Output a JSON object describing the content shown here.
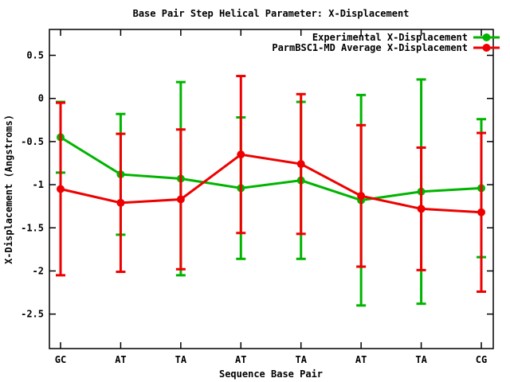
{
  "chart_data": {
    "type": "line",
    "title": "Base Pair Step Helical Parameter: X-Displacement",
    "xlabel": "Sequence Base Pair",
    "ylabel": "X-Displacement (Angstroms)",
    "categories": [
      "GC",
      "AT",
      "TA",
      "AT",
      "TA",
      "AT",
      "TA",
      "CG"
    ],
    "series": [
      {
        "name": "Experimental X-Displacement",
        "color": "#00b400",
        "marker": "filled-circle",
        "values": [
          -0.45,
          -0.88,
          -0.93,
          -1.04,
          -0.95,
          -1.18,
          -1.08,
          -1.04
        ],
        "errors": [
          0.41,
          0.7,
          1.12,
          0.82,
          0.91,
          1.22,
          1.3,
          0.8
        ]
      },
      {
        "name": "ParmBSC1-MD Average X-Displacement",
        "color": "#ee0000",
        "marker": "filled-circle",
        "values": [
          -1.05,
          -1.21,
          -1.17,
          -0.65,
          -0.76,
          -1.13,
          -1.28,
          -1.32
        ],
        "errors": [
          1.0,
          0.8,
          0.81,
          0.91,
          0.81,
          0.82,
          0.71,
          0.92
        ]
      }
    ],
    "ylim": [
      -2.9,
      0.8
    ],
    "yticks": [
      0.5,
      0,
      -0.5,
      -1,
      -1.5,
      -2,
      -2.5
    ],
    "ytick_labels": [
      "0.5",
      "0",
      "-0.5",
      "-1",
      "-1.5",
      "-2",
      "-2.5"
    ],
    "grid": false,
    "error_bars": true,
    "legend_position": "top-right-inside",
    "background_color": "#ffffff",
    "text_color": "#000000"
  }
}
